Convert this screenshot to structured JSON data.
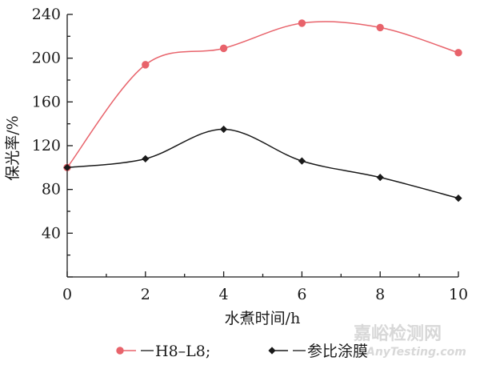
{
  "chart_data": {
    "type": "line",
    "title": "",
    "xlabel": "水煮时间/h",
    "ylabel": "保光率/%",
    "x": [
      0,
      2,
      4,
      6,
      8,
      10
    ],
    "xlim": [
      0,
      10
    ],
    "ylim": [
      0,
      240
    ],
    "x_ticks": [
      "0",
      "2",
      "4",
      "6",
      "8",
      "10"
    ],
    "y_ticks": [
      "40",
      "80",
      "120",
      "160",
      "200",
      "240"
    ],
    "grid": false,
    "legend_position": "bottom",
    "series": [
      {
        "name": "H8–L8;",
        "values": [
          100,
          194,
          209,
          232,
          228,
          205
        ],
        "color": "#e8636b",
        "marker": "circle"
      },
      {
        "name": "参比涂膜",
        "values": [
          100,
          108,
          135,
          106,
          91,
          72
        ],
        "color": "#1a1a1a",
        "marker": "diamond"
      }
    ]
  },
  "watermark": {
    "brand": "嘉峪检测网",
    "url": "AnyTesting.com"
  }
}
